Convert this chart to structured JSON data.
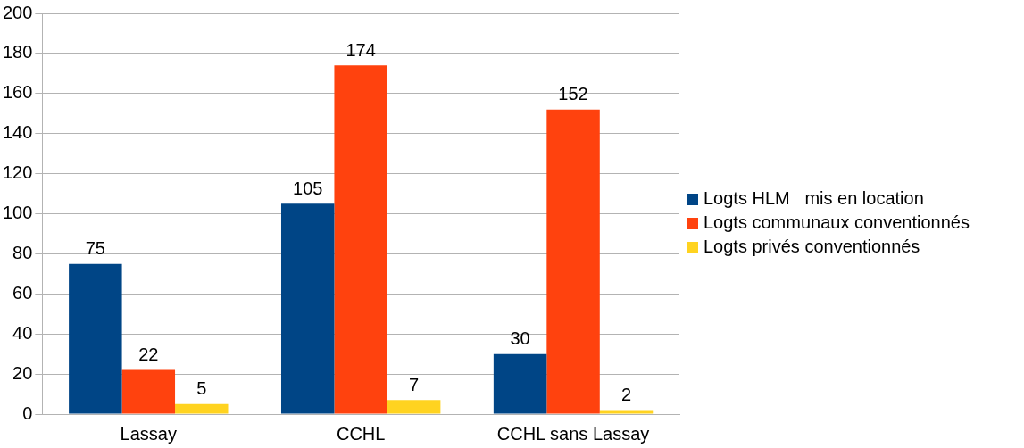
{
  "chart_data": {
    "type": "bar",
    "categories": [
      "Lassay",
      "CCHL",
      "CCHL sans Lassay"
    ],
    "series": [
      {
        "name": "Logts HLM   mis en location",
        "color": "#004586",
        "values": [
          75,
          105,
          30
        ]
      },
      {
        "name": "Logts communaux conventionnés",
        "color": "#ff420e",
        "values": [
          22,
          174,
          152
        ]
      },
      {
        "name": "Logts privés conventionnés",
        "color": "#ffd320",
        "values": [
          5,
          7,
          2
        ]
      }
    ],
    "ylim": [
      0,
      200
    ],
    "yticks": [
      0,
      20,
      40,
      60,
      80,
      100,
      120,
      140,
      160,
      180,
      200
    ],
    "grid": "y",
    "legend": "right",
    "data_labels": true
  }
}
